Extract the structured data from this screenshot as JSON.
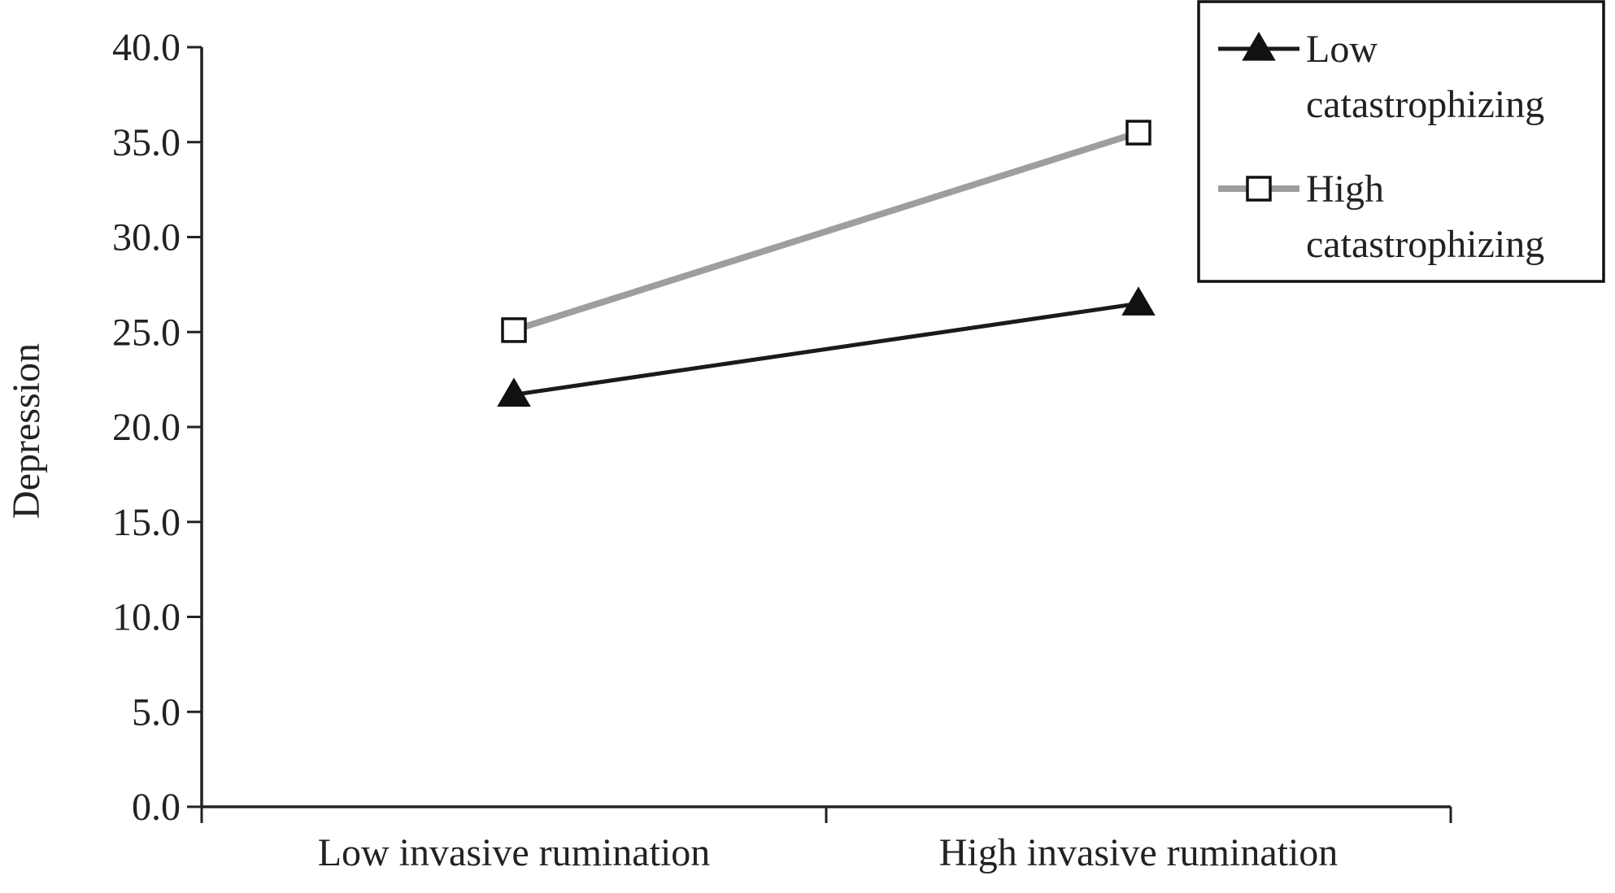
{
  "chart_data": {
    "type": "line",
    "title": "",
    "xlabel": "",
    "ylabel": "Depression",
    "ylim": [
      0,
      40
    ],
    "yticks": [
      "0.0",
      "5.0",
      "10.0",
      "15.0",
      "20.0",
      "25.0",
      "30.0",
      "35.0",
      "40.0"
    ],
    "ytick_values": [
      0,
      5,
      10,
      15,
      20,
      25,
      30,
      35,
      40
    ],
    "categories": [
      "Low invasive rumination",
      "High invasive rumination"
    ],
    "grid": false,
    "legend_position": "top-right",
    "series": [
      {
        "name_lines": [
          "Low",
          "catastrophizing"
        ],
        "values": [
          21.7,
          26.5
        ],
        "color": "#1a1a1a",
        "marker": "triangle-filled"
      },
      {
        "name_lines": [
          "High",
          "catastrophizing"
        ],
        "values": [
          25.1,
          35.5
        ],
        "color": "#9e9e9e",
        "marker": "square-open"
      }
    ]
  }
}
